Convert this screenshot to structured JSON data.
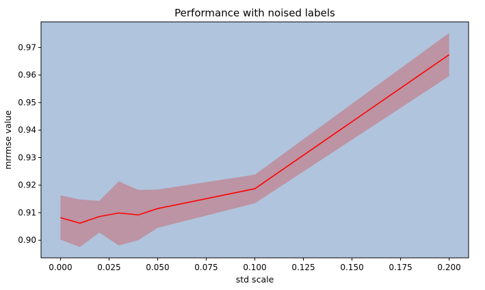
{
  "chart_data": {
    "type": "line",
    "title": "Performance with noised labels",
    "xlabel": "std scale",
    "ylabel": "mrrmse value",
    "xlim": [
      -0.01,
      0.21
    ],
    "ylim": [
      0.8936,
      0.9793
    ],
    "grid": false,
    "background_color": "#b0c4de",
    "line_color": "#ff0000",
    "band_color": "#cd5c5c",
    "x_ticks": [
      0.0,
      0.025,
      0.05,
      0.075,
      0.1,
      0.125,
      0.15,
      0.175,
      0.2
    ],
    "x_tick_labels": [
      "0.000",
      "0.025",
      "0.050",
      "0.075",
      "0.100",
      "0.125",
      "0.150",
      "0.175",
      "0.200"
    ],
    "y_ticks": [
      0.9,
      0.91,
      0.92,
      0.93,
      0.94,
      0.95,
      0.96,
      0.97
    ],
    "y_tick_labels": [
      "0.90",
      "0.91",
      "0.92",
      "0.93",
      "0.94",
      "0.95",
      "0.96",
      "0.97"
    ],
    "x": [
      0.0,
      0.01,
      0.02,
      0.03,
      0.04,
      0.05,
      0.1,
      0.2
    ],
    "series": [
      {
        "values": [
          0.9082,
          0.9062,
          0.9086,
          0.9099,
          0.9092,
          0.9115,
          0.9187,
          0.9674
        ],
        "lower": [
          0.9002,
          0.8975,
          0.9028,
          0.8981,
          0.9,
          0.9045,
          0.9134,
          0.9596
        ],
        "upper": [
          0.9163,
          0.9148,
          0.9143,
          0.9214,
          0.9183,
          0.9184,
          0.9238,
          0.9753
        ]
      }
    ]
  }
}
